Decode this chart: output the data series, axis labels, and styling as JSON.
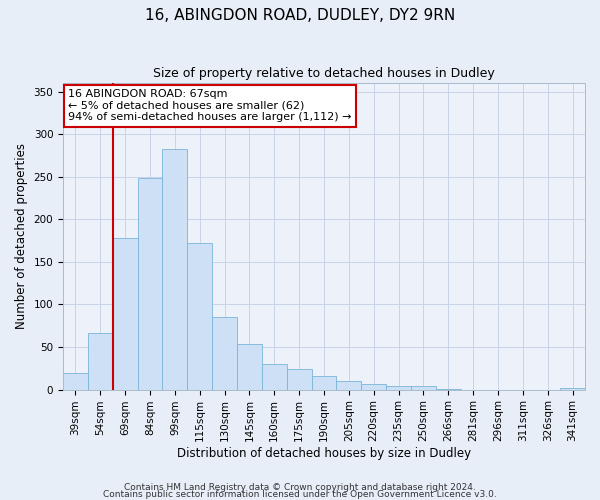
{
  "title1": "16, ABINGDON ROAD, DUDLEY, DY2 9RN",
  "title2": "Size of property relative to detached houses in Dudley",
  "xlabel": "Distribution of detached houses by size in Dudley",
  "ylabel": "Number of detached properties",
  "footer1": "Contains HM Land Registry data © Crown copyright and database right 2024.",
  "footer2": "Contains public sector information licensed under the Open Government Licence v3.0.",
  "bar_labels": [
    "39sqm",
    "54sqm",
    "69sqm",
    "84sqm",
    "99sqm",
    "115sqm",
    "130sqm",
    "145sqm",
    "160sqm",
    "175sqm",
    "190sqm",
    "205sqm",
    "220sqm",
    "235sqm",
    "250sqm",
    "266sqm",
    "281sqm",
    "296sqm",
    "311sqm",
    "326sqm",
    "341sqm"
  ],
  "bar_values": [
    20,
    67,
    178,
    249,
    282,
    172,
    85,
    53,
    30,
    24,
    16,
    10,
    7,
    4,
    4,
    1,
    0,
    0,
    0,
    0,
    2
  ],
  "bar_color": "#cde0f5",
  "bar_edgecolor": "#7ab4d8",
  "vline_color": "#cc0000",
  "vline_pos": 1.5,
  "annotation_title": "16 ABINGDON ROAD: 67sqm",
  "annotation_line1": "← 5% of detached houses are smaller (62)",
  "annotation_line2": "94% of semi-detached houses are larger (1,112) →",
  "annotation_box_color": "#ffffff",
  "annotation_box_edgecolor": "#cc0000",
  "ylim": [
    0,
    360
  ],
  "yticks": [
    0,
    50,
    100,
    150,
    200,
    250,
    300,
    350
  ],
  "grid_color": "#c8d4e8",
  "background_color": "#e8eef8",
  "plot_bg_color": "#edf2fa",
  "title1_fontsize": 11,
  "title2_fontsize": 9,
  "axis_label_fontsize": 8.5,
  "tick_fontsize": 7.5,
  "footer_fontsize": 6.5
}
